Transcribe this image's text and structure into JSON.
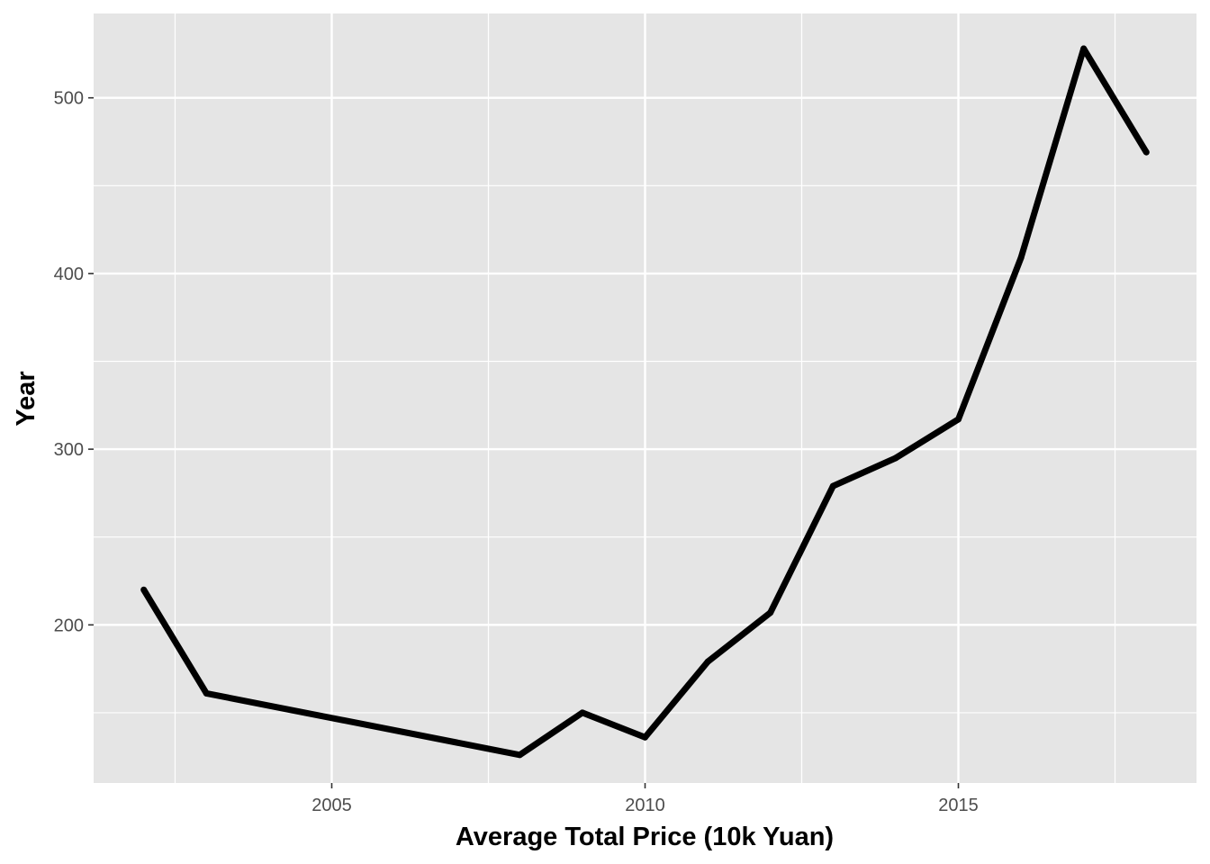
{
  "chart_data": {
    "type": "line",
    "title": "",
    "xlabel": "Average Total Price (10k Yuan)",
    "ylabel": "Year",
    "xlim": [
      2001.2,
      2018.8
    ],
    "ylim": [
      110,
      548
    ],
    "x_ticks": [
      2005,
      2010,
      2015
    ],
    "y_ticks": [
      200,
      300,
      400,
      500
    ],
    "x_ticks_minor": [
      2002.5,
      2007.5,
      2012.5,
      2017.5
    ],
    "y_ticks_minor": [
      150,
      250,
      350,
      450
    ],
    "grid": true,
    "legend": "none",
    "series": [
      {
        "line_color": "#000000",
        "x": [
          2002,
          2003,
          2008,
          2009,
          2010,
          2011,
          2012,
          2013,
          2014,
          2015,
          2016,
          2017,
          2018
        ],
        "values": [
          220,
          161,
          126,
          150,
          136,
          179,
          207,
          279,
          295,
          317,
          409,
          528,
          469
        ]
      }
    ],
    "panel_color": "#e5e5e5",
    "grid_color": "#ffffff"
  }
}
